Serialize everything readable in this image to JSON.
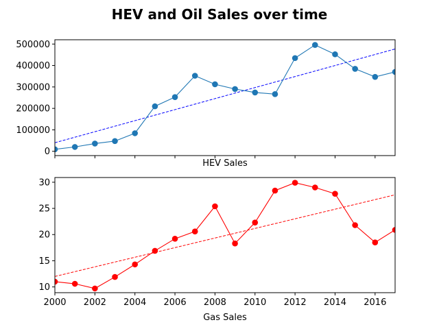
{
  "title": "HEV and Oil Sales over time",
  "chart_data": [
    {
      "type": "line",
      "xlabel": "HEV Sales",
      "ylabel": "",
      "xlim": [
        2000,
        2017
      ],
      "ylim": [
        -20000,
        520000
      ],
      "x_ticks": [
        2000,
        2002,
        2004,
        2006,
        2008,
        2010,
        2012,
        2014,
        2016
      ],
      "x_tick_labels_visible": false,
      "y_ticks": [
        0,
        100000,
        200000,
        300000,
        400000,
        500000
      ],
      "y_tick_labels": [
        "0",
        "100000",
        "200000",
        "300000",
        "400000",
        "500000"
      ],
      "series": [
        {
          "color": "#1f77b4",
          "marker": "circle",
          "x": [
            2000,
            2001,
            2002,
            2003,
            2004,
            2005,
            2006,
            2007,
            2008,
            2009,
            2010,
            2011,
            2012,
            2013,
            2014,
            2015,
            2016,
            2017
          ],
          "values": [
            9350,
            20287,
            36035,
            47600,
            84199,
            209711,
            252636,
            352274,
            312386,
            290271,
            274210,
            266501,
            434498,
            495771,
            452152,
            384404,
            346948,
            369950
          ]
        }
      ],
      "trendline": {
        "color": "#0000ff",
        "style": "dashed",
        "x": [
          2000,
          2017
        ],
        "values": [
          40000,
          477000
        ]
      }
    },
    {
      "type": "line",
      "xlabel": "Gas Sales",
      "ylabel": "",
      "xlim": [
        2000,
        2017
      ],
      "ylim": [
        8.9,
        30.9
      ],
      "x_ticks": [
        2000,
        2002,
        2004,
        2006,
        2008,
        2010,
        2012,
        2014,
        2016
      ],
      "x_tick_labels": [
        "2000",
        "2002",
        "2004",
        "2006",
        "2008",
        "2010",
        "2012",
        "2014",
        "2016"
      ],
      "y_ticks": [
        10,
        15,
        20,
        25,
        30
      ],
      "y_tick_labels": [
        "10",
        "15",
        "20",
        "25",
        "30"
      ],
      "series": [
        {
          "color": "#ff0000",
          "marker": "circle",
          "x": [
            2000,
            2001,
            2002,
            2003,
            2004,
            2005,
            2006,
            2007,
            2008,
            2009,
            2010,
            2011,
            2012,
            2013,
            2014,
            2015,
            2016,
            2017
          ],
          "values": [
            11.0,
            10.6,
            9.7,
            11.9,
            14.3,
            16.9,
            19.2,
            20.6,
            25.4,
            18.3,
            22.3,
            28.4,
            29.9,
            29.0,
            27.8,
            21.8,
            18.5,
            20.9
          ]
        }
      ],
      "trendline": {
        "color": "#ff0000",
        "style": "dashed",
        "x": [
          2000,
          2017
        ],
        "values": [
          12.0,
          27.6
        ]
      }
    }
  ]
}
